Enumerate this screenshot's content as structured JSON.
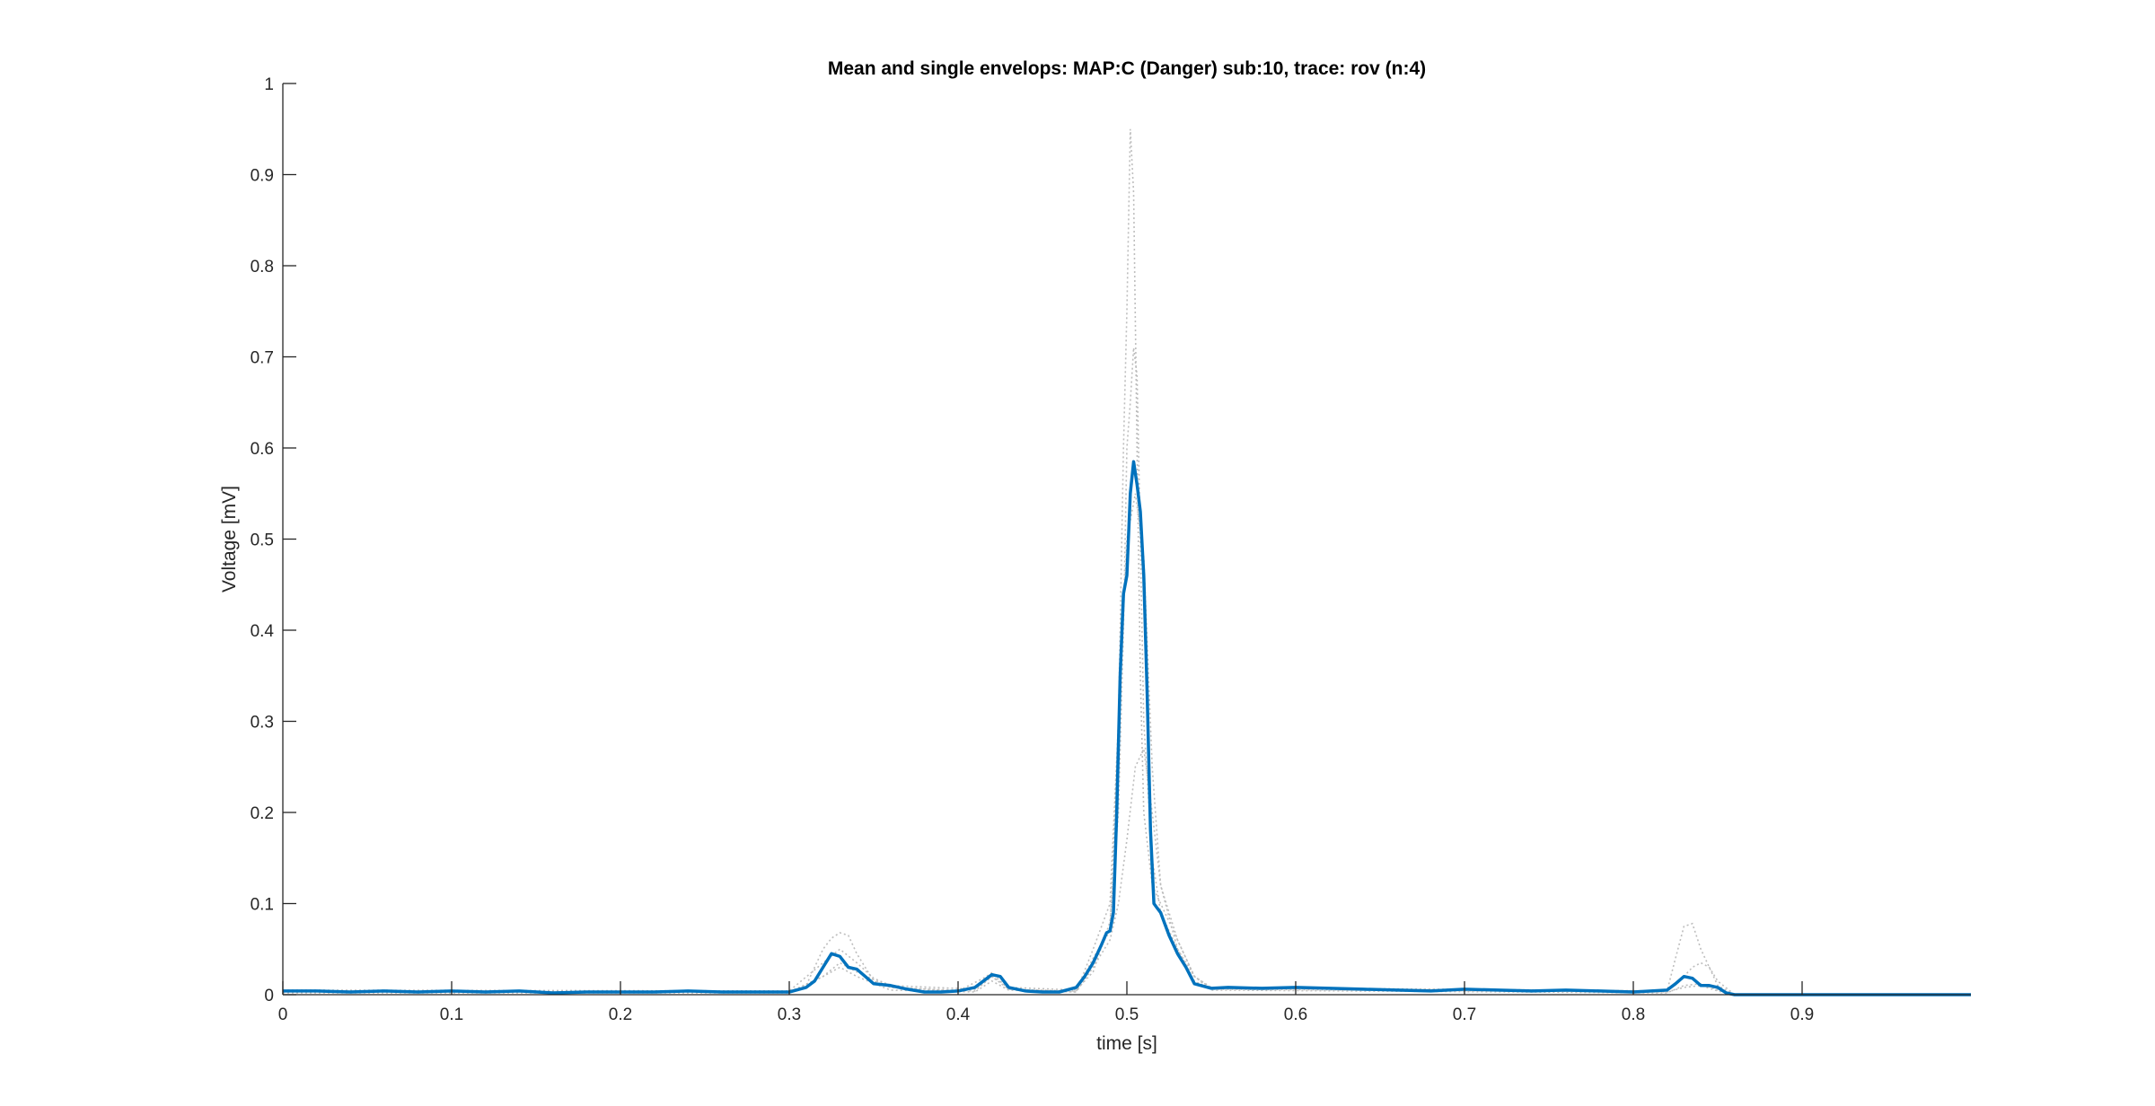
{
  "chart_data": {
    "type": "line",
    "title": "Mean and single envelops: MAP:C (Danger) sub:10, trace: rov (n:4)",
    "xlabel": "time [s]",
    "ylabel": "Voltage [mV]",
    "xlim": [
      0,
      1
    ],
    "ylim": [
      0,
      1
    ],
    "xticks": [
      "0",
      "0.1",
      "0.2",
      "0.3",
      "0.4",
      "0.5",
      "0.6",
      "0.7",
      "0.8",
      "0.9"
    ],
    "yticks": [
      "0",
      "0.1",
      "0.2",
      "0.3",
      "0.4",
      "0.5",
      "0.6",
      "0.7",
      "0.8",
      "0.9",
      "1"
    ],
    "grid": false,
    "legend": false,
    "colors": {
      "mean": "#0072BD",
      "single": "#BDBDBD",
      "axes": "#262626"
    },
    "series": [
      {
        "role": "mean",
        "x": [
          0,
          0.02,
          0.04,
          0.06,
          0.08,
          0.1,
          0.12,
          0.14,
          0.16,
          0.18,
          0.2,
          0.22,
          0.24,
          0.26,
          0.28,
          0.3,
          0.31,
          0.315,
          0.32,
          0.325,
          0.33,
          0.335,
          0.34,
          0.345,
          0.35,
          0.36,
          0.37,
          0.38,
          0.39,
          0.4,
          0.41,
          0.415,
          0.42,
          0.425,
          0.43,
          0.44,
          0.45,
          0.46,
          0.47,
          0.475,
          0.48,
          0.485,
          0.488,
          0.49,
          0.492,
          0.494,
          0.496,
          0.498,
          0.5,
          0.502,
          0.504,
          0.506,
          0.508,
          0.51,
          0.512,
          0.514,
          0.516,
          0.518,
          0.52,
          0.525,
          0.53,
          0.535,
          0.54,
          0.55,
          0.56,
          0.58,
          0.6,
          0.62,
          0.64,
          0.66,
          0.68,
          0.7,
          0.72,
          0.74,
          0.76,
          0.78,
          0.8,
          0.82,
          0.825,
          0.83,
          0.835,
          0.84,
          0.845,
          0.85,
          0.855,
          0.86,
          0.9,
          1.0
        ],
        "y": [
          0.004,
          0.004,
          0.003,
          0.004,
          0.003,
          0.004,
          0.003,
          0.004,
          0.002,
          0.003,
          0.003,
          0.003,
          0.004,
          0.003,
          0.003,
          0.003,
          0.008,
          0.015,
          0.03,
          0.045,
          0.042,
          0.03,
          0.028,
          0.02,
          0.012,
          0.01,
          0.006,
          0.003,
          0.003,
          0.004,
          0.008,
          0.015,
          0.022,
          0.02,
          0.008,
          0.004,
          0.003,
          0.003,
          0.008,
          0.02,
          0.035,
          0.055,
          0.068,
          0.07,
          0.09,
          0.2,
          0.35,
          0.44,
          0.46,
          0.55,
          0.585,
          0.56,
          0.53,
          0.46,
          0.33,
          0.18,
          0.1,
          0.095,
          0.09,
          0.065,
          0.045,
          0.03,
          0.012,
          0.007,
          0.008,
          0.007,
          0.008,
          0.007,
          0.006,
          0.005,
          0.004,
          0.006,
          0.005,
          0.004,
          0.005,
          0.004,
          0.003,
          0.005,
          0.012,
          0.02,
          0.018,
          0.01,
          0.01,
          0.008,
          0.002,
          0.0,
          0.0,
          0.0
        ]
      },
      {
        "role": "single",
        "x": [
          0,
          0.3,
          0.31,
          0.32,
          0.325,
          0.33,
          0.335,
          0.34,
          0.345,
          0.35,
          0.36,
          0.4,
          0.415,
          0.42,
          0.43,
          0.47,
          0.48,
          0.49,
          0.495,
          0.498,
          0.5,
          0.502,
          0.504,
          0.506,
          0.508,
          0.51,
          0.515,
          0.52,
          0.53,
          0.54,
          0.55,
          0.82,
          0.825,
          0.83,
          0.835,
          0.84,
          0.845,
          0.85,
          0.86,
          1.0
        ],
        "y": [
          0.003,
          0.003,
          0.01,
          0.05,
          0.062,
          0.068,
          0.065,
          0.045,
          0.03,
          0.015,
          0.008,
          0.004,
          0.018,
          0.024,
          0.006,
          0.003,
          0.05,
          0.1,
          0.3,
          0.6,
          0.75,
          0.95,
          0.88,
          0.6,
          0.35,
          0.2,
          0.12,
          0.1,
          0.06,
          0.02,
          0.007,
          0.004,
          0.04,
          0.075,
          0.078,
          0.05,
          0.03,
          0.01,
          0.0,
          0.0
        ]
      },
      {
        "role": "single",
        "x": [
          0,
          0.3,
          0.32,
          0.33,
          0.34,
          0.35,
          0.36,
          0.41,
          0.42,
          0.43,
          0.47,
          0.48,
          0.49,
          0.495,
          0.498,
          0.5,
          0.502,
          0.504,
          0.506,
          0.508,
          0.51,
          0.515,
          0.52,
          0.53,
          0.54,
          0.55,
          0.82,
          0.83,
          0.835,
          0.84,
          0.845,
          0.85,
          0.86,
          1.0
        ],
        "y": [
          0.005,
          0.004,
          0.035,
          0.05,
          0.035,
          0.018,
          0.01,
          0.006,
          0.02,
          0.008,
          0.005,
          0.025,
          0.08,
          0.2,
          0.4,
          0.6,
          0.65,
          0.71,
          0.68,
          0.5,
          0.3,
          0.15,
          0.09,
          0.05,
          0.02,
          0.008,
          0.004,
          0.02,
          0.03,
          0.035,
          0.03,
          0.015,
          0.0,
          0.0
        ]
      },
      {
        "role": "single",
        "x": [
          0,
          0.3,
          0.32,
          0.33,
          0.34,
          0.36,
          0.41,
          0.42,
          0.43,
          0.47,
          0.48,
          0.49,
          0.495,
          0.5,
          0.505,
          0.51,
          0.515,
          0.52,
          0.53,
          0.54,
          0.55,
          0.82,
          0.83,
          0.84,
          0.85,
          0.86,
          1.0
        ],
        "y": [
          0.002,
          0.002,
          0.02,
          0.03,
          0.02,
          0.005,
          0.003,
          0.015,
          0.005,
          0.003,
          0.03,
          0.06,
          0.1,
          0.17,
          0.25,
          0.27,
          0.2,
          0.12,
          0.06,
          0.02,
          0.005,
          0.002,
          0.01,
          0.012,
          0.005,
          0.0,
          0.0
        ]
      },
      {
        "role": "single",
        "x": [
          0,
          0.3,
          0.32,
          0.33,
          0.34,
          0.36,
          0.41,
          0.42,
          0.43,
          0.47,
          0.48,
          0.49,
          0.495,
          0.5,
          0.505,
          0.51,
          0.515,
          0.52,
          0.53,
          0.54,
          0.55,
          0.82,
          0.83,
          0.84,
          0.85,
          0.86,
          1.0
        ],
        "y": [
          0.004,
          0.003,
          0.02,
          0.035,
          0.025,
          0.008,
          0.004,
          0.02,
          0.006,
          0.004,
          0.04,
          0.07,
          0.3,
          0.5,
          0.55,
          0.48,
          0.25,
          0.12,
          0.05,
          0.015,
          0.006,
          0.003,
          0.008,
          0.01,
          0.004,
          0.0,
          0.0
        ]
      }
    ]
  }
}
